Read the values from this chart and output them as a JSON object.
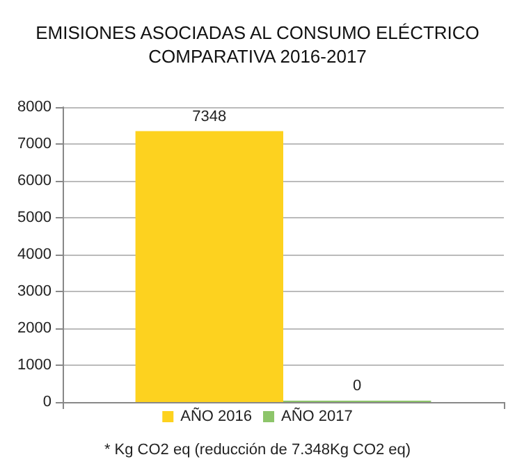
{
  "chart_data": {
    "type": "bar",
    "title": "EMISIONES ASOCIADAS AL CONSUMO ELÉCTRICO",
    "subtitle": "COMPARATIVA 2016-2017",
    "categories": [
      null
    ],
    "series": [
      {
        "name": "AÑO 2016",
        "color": "#fdd21f",
        "values": [
          7348
        ]
      },
      {
        "name": "AÑO 2017",
        "color": "#8dc56a",
        "values": [
          0
        ]
      }
    ],
    "ylim": [
      0,
      8000
    ],
    "yticks": [
      0,
      1000,
      2000,
      3000,
      4000,
      5000,
      6000,
      7000,
      8000
    ],
    "grid": "y",
    "legend": "bottom",
    "data_labels": true,
    "annotations": [
      "* Kg CO2 eq (reducción de 7.348Kg CO2 eq)"
    ]
  }
}
